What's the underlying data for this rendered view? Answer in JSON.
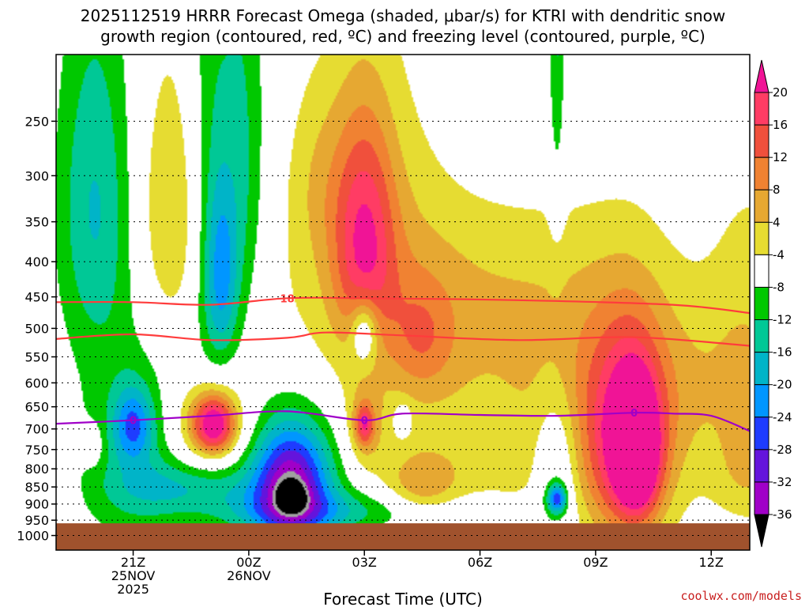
{
  "title_line1": "2025112519 HRRR Forecast Omega (shaded, μbar/s) for KTRI with dendritic snow",
  "title_line2": "growth region (contoured, red, ºC) and freezing level (contoured, purple, ºC)",
  "xlabel": "Forecast Time (UTC)",
  "credit": "coolwx.com/models",
  "chart_data": {
    "type": "heatmap",
    "x_unit": "hours from 19Z 25NOV2025",
    "y_axis": {
      "unit": "mb",
      "scale": "log",
      "inverted": true,
      "range": [
        1050,
        200
      ],
      "ticks": [
        250,
        300,
        350,
        400,
        450,
        500,
        550,
        600,
        650,
        700,
        750,
        800,
        850,
        900,
        950,
        1000
      ]
    },
    "x_axis": {
      "range": [
        0,
        18
      ],
      "ticks": [
        {
          "x": 2,
          "label": [
            "21Z",
            "25NOV",
            "2025"
          ]
        },
        {
          "x": 5,
          "label": [
            "00Z",
            "26NOV"
          ]
        },
        {
          "x": 8,
          "label": [
            "03Z"
          ]
        },
        {
          "x": 11,
          "label": [
            "06Z"
          ]
        },
        {
          "x": 14,
          "label": [
            "09Z"
          ]
        },
        {
          "x": 17,
          "label": [
            "12Z"
          ]
        }
      ]
    },
    "ground_below_mb": 960,
    "colorbar": {
      "levels": [
        20,
        16,
        12,
        8,
        4,
        -4,
        -8,
        -12,
        -16,
        -20,
        -24,
        -28,
        -32,
        -36
      ],
      "colors": [
        "#ff3c64",
        "#f0503c",
        "#f08232",
        "#e6a832",
        "#e6dc32",
        "#ffffff",
        "#00c800",
        "#00c896",
        "#00b4c8",
        "#0096ff",
        "#1e3cff",
        "#6414dc",
        "#a000c8",
        "#a0a0a0"
      ],
      "top_color": "#f01496",
      "bottom_color": "#000000"
    },
    "omega_features": [
      {
        "x": 1.0,
        "p": 330,
        "dx": 0.7,
        "dp": 140,
        "v": -12
      },
      {
        "x": 3.0,
        "p": 340,
        "dx": 0.65,
        "dp": 110,
        "v": 9
      },
      {
        "x": 4.0,
        "p": 330,
        "dx": 0.45,
        "dp": 240,
        "v": -8
      },
      {
        "x": 4.9,
        "p": 290,
        "dx": 0.4,
        "dp": 160,
        "v": -8
      },
      {
        "x": 4.3,
        "p": 420,
        "dx": 0.3,
        "dp": 90,
        "v": -13
      },
      {
        "x": 8.0,
        "p": 370,
        "dx": 0.55,
        "dp": 100,
        "v": 17
      },
      {
        "x": 8.3,
        "p": 320,
        "dx": 1.2,
        "dp": 130,
        "v": 5
      },
      {
        "x": 6.8,
        "p": 300,
        "dx": 0.6,
        "dp": 70,
        "v": 5
      },
      {
        "x": 10.5,
        "p": 420,
        "dx": 3.0,
        "dp": 90,
        "v": 5
      },
      {
        "x": 9.5,
        "p": 520,
        "dx": 0.6,
        "dp": 70,
        "v": 8
      },
      {
        "x": 8.0,
        "p": 505,
        "dx": 0.25,
        "dp": 40,
        "v": -14
      },
      {
        "x": 2.0,
        "p": 760,
        "dx": 1.0,
        "dp": 190,
        "v": -9
      },
      {
        "x": 2.0,
        "p": 690,
        "dx": 0.35,
        "dp": 60,
        "v": -14
      },
      {
        "x": 3.3,
        "p": 850,
        "dx": 1.2,
        "dp": 50,
        "v": -8
      },
      {
        "x": 4.0,
        "p": 690,
        "dx": 0.7,
        "dp": 75,
        "v": 14
      },
      {
        "x": 4.1,
        "p": 690,
        "dx": 0.35,
        "dp": 45,
        "v": 21
      },
      {
        "x": 6.1,
        "p": 850,
        "dx": 1.2,
        "dp": 160,
        "v": -12
      },
      {
        "x": 6.1,
        "p": 840,
        "dx": 0.65,
        "dp": 110,
        "v": -22
      },
      {
        "x": 6.1,
        "p": 880,
        "dx": 0.2,
        "dp": 25,
        "v": -34
      },
      {
        "x": 7.4,
        "p": 920,
        "dx": 2.5,
        "dp": 45,
        "v": -8
      },
      {
        "x": 8.0,
        "p": 700,
        "dx": 0.35,
        "dp": 70,
        "v": 9
      },
      {
        "x": 8.0,
        "p": 690,
        "dx": 0.15,
        "dp": 30,
        "v": 14
      },
      {
        "x": 9.8,
        "p": 560,
        "dx": 3.5,
        "dp": 120,
        "v": 5
      },
      {
        "x": 10.2,
        "p": 820,
        "dx": 2.5,
        "dp": 110,
        "v": 5
      },
      {
        "x": 9.5,
        "p": 850,
        "dx": 0.6,
        "dp": 60,
        "v": 8
      },
      {
        "x": 13.0,
        "p": 800,
        "dx": 0.4,
        "dp": 150,
        "v": -10
      },
      {
        "x": 13.0,
        "p": 885,
        "dx": 0.18,
        "dp": 30,
        "v": -20
      },
      {
        "x": 14.6,
        "p": 740,
        "dx": 1.2,
        "dp": 210,
        "v": 11
      },
      {
        "x": 14.9,
        "p": 740,
        "dx": 0.6,
        "dp": 160,
        "v": 18
      },
      {
        "x": 15.1,
        "p": 760,
        "dx": 0.35,
        "dp": 100,
        "v": 22
      },
      {
        "x": 15.5,
        "p": 600,
        "dx": 3.0,
        "dp": 130,
        "v": 5
      },
      {
        "x": 18.0,
        "p": 560,
        "dx": 0.8,
        "dp": 250,
        "v": 5
      },
      {
        "x": 18.0,
        "p": 820,
        "dx": 0.7,
        "dp": 90,
        "v": 5
      },
      {
        "x": 13.0,
        "p": 160,
        "dx": 0.15,
        "dp": 120,
        "v": -9
      },
      {
        "x": 1.0,
        "p": 740,
        "dx": 0.2,
        "dp": 40,
        "v": 5
      },
      {
        "x": 9.0,
        "p": 680,
        "dx": 0.15,
        "dp": 25,
        "v": -8
      }
    ],
    "contour_lines": [
      {
        "name": "-18",
        "color": "#ff3c3c",
        "label": "-18",
        "label_x": 6.0,
        "points": [
          [
            0,
            458
          ],
          [
            2,
            458
          ],
          [
            4,
            462
          ],
          [
            6,
            452
          ],
          [
            8,
            452
          ],
          [
            12,
            455
          ],
          [
            16,
            462
          ],
          [
            18,
            475
          ]
        ]
      },
      {
        "name": "-12",
        "color": "#ff3c3c",
        "points": [
          [
            0,
            518
          ],
          [
            2,
            510
          ],
          [
            4,
            520
          ],
          [
            6,
            516
          ],
          [
            7,
            507
          ],
          [
            9,
            512
          ],
          [
            12,
            520
          ],
          [
            15,
            515
          ],
          [
            18,
            530
          ]
        ]
      },
      {
        "name": "0",
        "color": "#a000c8",
        "label": "0",
        "label_x": 2.0,
        "label_x2": 8.0,
        "label_x3": 15.0,
        "points": [
          [
            0,
            688
          ],
          [
            2,
            680
          ],
          [
            4,
            670
          ],
          [
            6,
            660
          ],
          [
            8,
            680
          ],
          [
            9,
            665
          ],
          [
            11,
            668
          ],
          [
            13,
            670
          ],
          [
            15,
            663
          ],
          [
            16,
            665
          ],
          [
            17,
            670
          ],
          [
            18,
            705
          ]
        ]
      }
    ]
  }
}
